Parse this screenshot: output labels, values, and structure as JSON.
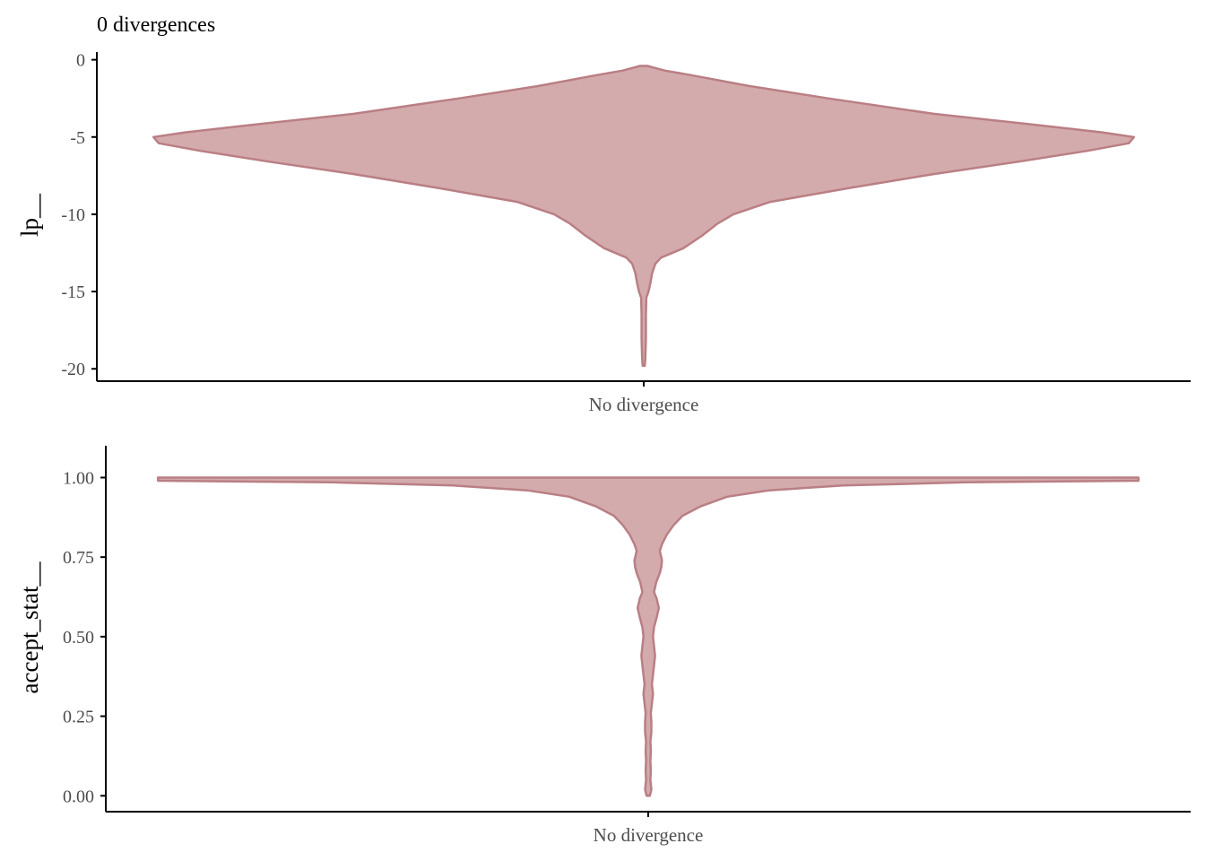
{
  "title": "0 divergences",
  "colors": {
    "violin_fill": "#d4abad",
    "violin_stroke": "#b97f84",
    "axis": "#000000",
    "tick_text": "#4d4d4d",
    "label_text": "#000000"
  },
  "chart_data": [
    {
      "type": "violin",
      "title": "0 divergences",
      "ylabel": "lp__",
      "xlabel": "",
      "categories": [
        "No divergence"
      ],
      "ylim": [
        -20.8,
        0.5
      ],
      "yticks": [
        0,
        -5,
        -10,
        -15,
        -20
      ],
      "ytick_labels": [
        "0",
        "-5",
        "-10",
        "-15",
        "-20"
      ],
      "grid": false,
      "density_profile": {
        "y": [
          -0.4,
          -0.7,
          -1.0,
          -1.7,
          -2.5,
          -3.5,
          -4.2,
          -4.7,
          -5.0,
          -5.4,
          -5.9,
          -6.6,
          -7.4,
          -8.3,
          -9.2,
          -10.0,
          -10.6,
          -11.4,
          -12.2,
          -12.8,
          -13.2,
          -13.8,
          -14.4,
          -15.0,
          -15.4,
          -16.5,
          -18.0,
          -19.3,
          -19.8
        ],
        "half_width": [
          0.007,
          0.04,
          0.09,
          0.2,
          0.35,
          0.55,
          0.74,
          0.87,
          0.93,
          0.92,
          0.84,
          0.71,
          0.55,
          0.39,
          0.24,
          0.17,
          0.14,
          0.11,
          0.075,
          0.033,
          0.022,
          0.016,
          0.013,
          0.009,
          0.005,
          0.004,
          0.004,
          0.003,
          0.002
        ]
      }
    },
    {
      "type": "violin",
      "title": "",
      "ylabel": "accept_stat__",
      "xlabel": "",
      "categories": [
        "No divergence"
      ],
      "ylim": [
        -0.05,
        1.1
      ],
      "yticks": [
        1.0,
        0.75,
        0.5,
        0.25,
        0.0
      ],
      "ytick_labels": [
        "1.00",
        "0.75",
        "0.50",
        "0.25",
        "0.00"
      ],
      "grid": false,
      "density_profile": {
        "y": [
          1.0,
          0.995,
          0.99,
          0.985,
          0.975,
          0.96,
          0.94,
          0.91,
          0.88,
          0.85,
          0.82,
          0.79,
          0.77,
          0.74,
          0.72,
          0.7,
          0.67,
          0.64,
          0.62,
          0.59,
          0.56,
          0.53,
          0.5,
          0.47,
          0.44,
          0.41,
          0.38,
          0.35,
          0.32,
          0.29,
          0.26,
          0.23,
          0.2,
          0.17,
          0.14,
          0.11,
          0.08,
          0.05,
          0.02,
          0.0
        ],
        "half_width": [
          0.93,
          0.93,
          0.93,
          0.6,
          0.37,
          0.23,
          0.15,
          0.1,
          0.065,
          0.048,
          0.035,
          0.026,
          0.022,
          0.026,
          0.025,
          0.022,
          0.015,
          0.011,
          0.016,
          0.02,
          0.016,
          0.011,
          0.009,
          0.011,
          0.013,
          0.011,
          0.009,
          0.007,
          0.009,
          0.007,
          0.005,
          0.006,
          0.006,
          0.004,
          0.005,
          0.004,
          0.005,
          0.004,
          0.006,
          0.003
        ]
      }
    }
  ]
}
